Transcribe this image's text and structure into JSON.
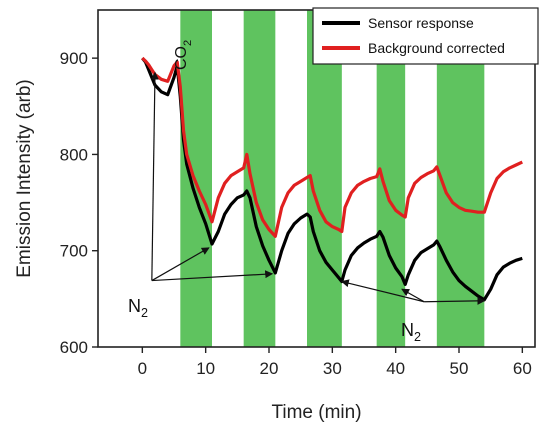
{
  "chart_data": {
    "type": "line",
    "xlabel": "Time (min)",
    "ylabel": "Emission Intensity (arb)",
    "xlim": [
      -7,
      62
    ],
    "ylim": [
      600,
      950
    ],
    "xticks": [
      0,
      10,
      20,
      30,
      40,
      50,
      60
    ],
    "yticks": [
      600,
      700,
      800,
      900
    ],
    "xtick_labels": [
      "0",
      "10",
      "20",
      "30",
      "40",
      "50",
      "60"
    ],
    "ytick_labels": [
      "600",
      "700",
      "800",
      "900"
    ],
    "grid": false,
    "legend_position": "top-right",
    "shaded_color": "#5fc35f",
    "co2_intervals": [
      [
        6,
        11
      ],
      [
        16,
        21
      ],
      [
        26,
        31.5
      ],
      [
        37,
        41.5
      ],
      [
        46.5,
        54
      ]
    ],
    "series": [
      {
        "name": "Sensor response",
        "color": "#000000",
        "x": [
          0,
          0.5,
          1,
          1.5,
          2,
          3,
          4,
          5,
          5.5,
          6,
          6.2,
          6.5,
          7,
          8,
          9,
          10,
          11,
          12,
          13,
          14,
          15,
          16,
          16.5,
          17,
          18,
          19,
          20,
          21,
          22,
          23,
          24,
          25,
          26,
          26.5,
          27,
          28,
          29,
          30,
          31,
          31.5,
          32,
          33,
          34,
          35,
          36,
          37,
          37.5,
          38,
          39,
          40,
          41,
          41.5,
          42,
          43,
          44,
          45,
          46,
          46.5,
          47,
          48,
          49,
          50,
          51,
          52,
          53,
          54,
          55,
          56,
          57,
          58,
          59,
          60
        ],
        "y": [
          900,
          896,
          888,
          880,
          872,
          865,
          862,
          880,
          892,
          860,
          842,
          815,
          790,
          765,
          745,
          728,
          707,
          720,
          738,
          748,
          755,
          758,
          762,
          755,
          725,
          705,
          690,
          677,
          700,
          718,
          728,
          734,
          738,
          735,
          720,
          700,
          688,
          680,
          672,
          668,
          680,
          695,
          703,
          708,
          712,
          715,
          720,
          714,
          695,
          682,
          673,
          665,
          675,
          690,
          698,
          702,
          706,
          710,
          704,
          690,
          678,
          669,
          663,
          658,
          653,
          649,
          660,
          675,
          683,
          687,
          690,
          692
        ]
      },
      {
        "name": "Background corrected",
        "color": "#e02020",
        "x": [
          0,
          0.5,
          1,
          1.5,
          2,
          3,
          4,
          5,
          5.5,
          6,
          6.2,
          6.5,
          7,
          8,
          9,
          10,
          11,
          12,
          13,
          14,
          15,
          16,
          16.5,
          17,
          18,
          19,
          20,
          21,
          22,
          23,
          24,
          25,
          26,
          26.5,
          27,
          28,
          29,
          30,
          31,
          31.5,
          32,
          33,
          34,
          35,
          36,
          37,
          37.5,
          38,
          39,
          40,
          41,
          41.5,
          42,
          43,
          44,
          45,
          46,
          46.5,
          47,
          48,
          49,
          50,
          51,
          52,
          53,
          54,
          55,
          56,
          57,
          58,
          59,
          60
        ],
        "y": [
          900,
          897,
          893,
          888,
          883,
          878,
          876,
          892,
          896,
          870,
          852,
          825,
          800,
          778,
          762,
          748,
          730,
          755,
          770,
          778,
          782,
          786,
          800,
          780,
          750,
          732,
          722,
          715,
          745,
          760,
          768,
          772,
          776,
          778,
          762,
          742,
          730,
          725,
          722,
          720,
          745,
          760,
          768,
          772,
          775,
          777,
          785,
          772,
          752,
          742,
          737,
          735,
          755,
          770,
          776,
          780,
          783,
          787,
          778,
          760,
          750,
          745,
          742,
          741,
          740,
          740,
          760,
          775,
          782,
          786,
          789,
          792
        ]
      }
    ],
    "annotations": {
      "co2_label": "CO2",
      "n2_label_left": "N2",
      "n2_label_right": "N2"
    },
    "n2_arrows": {
      "left_tail": [
        1.5,
        669
      ],
      "left_targets": [
        [
          2,
          885
        ],
        [
          10.5,
          703
        ],
        [
          20.5,
          676
        ]
      ],
      "right_tail": [
        44.5,
        647
      ],
      "right_targets": [
        [
          31.5,
          668
        ],
        [
          41,
          660
        ],
        [
          54,
          648
        ]
      ]
    }
  }
}
